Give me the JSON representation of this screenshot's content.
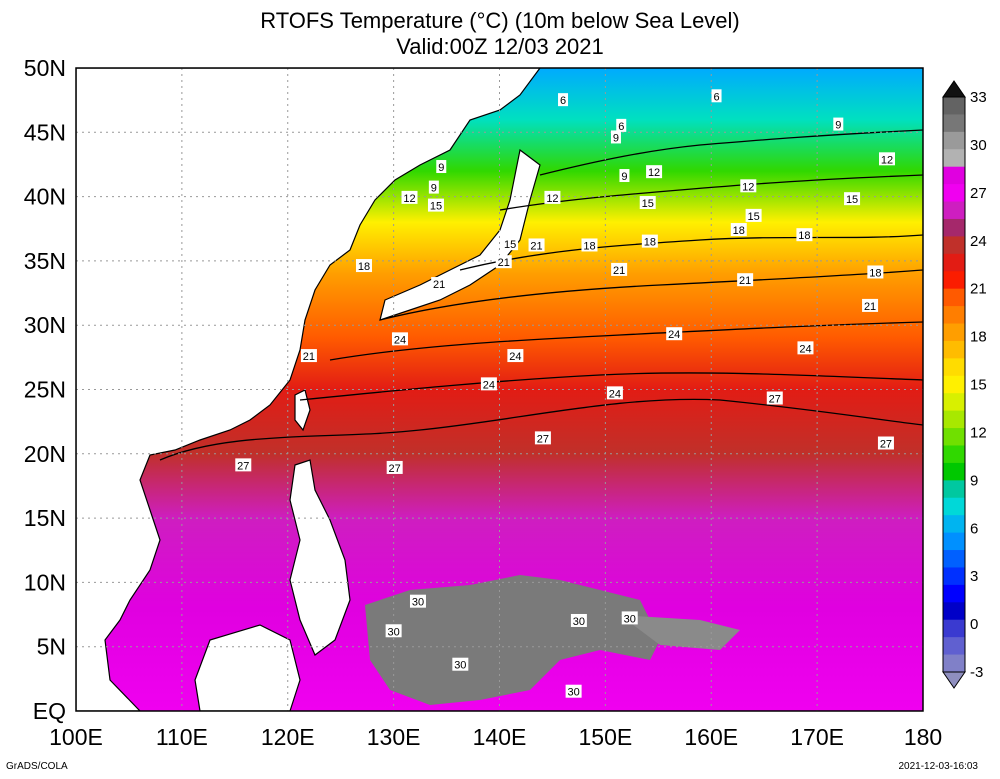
{
  "title": {
    "line1": "RTOFS Temperature (°C) (10m below Sea Level)",
    "line2": "Valid:00Z 12/03 2021"
  },
  "map": {
    "lon_range": [
      100,
      180
    ],
    "lat_range": [
      0,
      50
    ],
    "x_ticks": [
      "100E",
      "110E",
      "120E",
      "130E",
      "140E",
      "150E",
      "160E",
      "170E",
      "180"
    ],
    "y_ticks": [
      "EQ",
      "5N",
      "10N",
      "15N",
      "20N",
      "25N",
      "30N",
      "35N",
      "40N",
      "45N",
      "50N"
    ],
    "grid": "dotted",
    "contour_labels": [
      {
        "text": "6",
        "lon": 146,
        "lat": 47.5
      },
      {
        "text": "6",
        "lon": 160.5,
        "lat": 47.8
      },
      {
        "text": "6",
        "lon": 151.5,
        "lat": 45.5
      },
      {
        "text": "9",
        "lon": 134.5,
        "lat": 42.3
      },
      {
        "text": "9",
        "lon": 133.8,
        "lat": 40.7
      },
      {
        "text": "9",
        "lon": 151,
        "lat": 44.6
      },
      {
        "text": "9",
        "lon": 172,
        "lat": 45.6
      },
      {
        "text": "9",
        "lon": 151.8,
        "lat": 41.6
      },
      {
        "text": "12",
        "lon": 131.5,
        "lat": 39.9
      },
      {
        "text": "12",
        "lon": 145,
        "lat": 39.9
      },
      {
        "text": "12",
        "lon": 154.6,
        "lat": 41.9
      },
      {
        "text": "12",
        "lon": 163.5,
        "lat": 40.8
      },
      {
        "text": "12",
        "lon": 176.6,
        "lat": 42.9
      },
      {
        "text": "15",
        "lon": 134,
        "lat": 39.3
      },
      {
        "text": "15",
        "lon": 154,
        "lat": 39.5
      },
      {
        "text": "15",
        "lon": 164,
        "lat": 38.5
      },
      {
        "text": "15",
        "lon": 173.3,
        "lat": 39.8
      },
      {
        "text": "15",
        "lon": 141,
        "lat": 36.3
      },
      {
        "text": "18",
        "lon": 127.2,
        "lat": 34.6
      },
      {
        "text": "18",
        "lon": 148.5,
        "lat": 36.2
      },
      {
        "text": "18",
        "lon": 154.2,
        "lat": 36.5
      },
      {
        "text": "18",
        "lon": 162.6,
        "lat": 37.4
      },
      {
        "text": "18",
        "lon": 168.8,
        "lat": 37
      },
      {
        "text": "18",
        "lon": 175.5,
        "lat": 34.1
      },
      {
        "text": "21",
        "lon": 143.5,
        "lat": 36.2
      },
      {
        "text": "21",
        "lon": 140.4,
        "lat": 34.9
      },
      {
        "text": "21",
        "lon": 151.3,
        "lat": 34.3
      },
      {
        "text": "21",
        "lon": 163.2,
        "lat": 33.5
      },
      {
        "text": "21",
        "lon": 175,
        "lat": 31.5
      },
      {
        "text": "21",
        "lon": 134.3,
        "lat": 33.2
      },
      {
        "text": "21",
        "lon": 122,
        "lat": 27.6
      },
      {
        "text": "24",
        "lon": 130.6,
        "lat": 28.9
      },
      {
        "text": "24",
        "lon": 141.5,
        "lat": 27.6
      },
      {
        "text": "24",
        "lon": 156.5,
        "lat": 29.3
      },
      {
        "text": "24",
        "lon": 168.9,
        "lat": 28.2
      },
      {
        "text": "24",
        "lon": 139,
        "lat": 25.4
      },
      {
        "text": "24",
        "lon": 150.9,
        "lat": 24.7
      },
      {
        "text": "27",
        "lon": 166,
        "lat": 24.3
      },
      {
        "text": "27",
        "lon": 144.1,
        "lat": 21.2
      },
      {
        "text": "27",
        "lon": 176.5,
        "lat": 20.8
      },
      {
        "text": "27",
        "lon": 130.1,
        "lat": 18.9
      },
      {
        "text": "27",
        "lon": 115.8,
        "lat": 19.1
      },
      {
        "text": "30",
        "lon": 132.3,
        "lat": 8.5
      },
      {
        "text": "30",
        "lon": 130,
        "lat": 6.2
      },
      {
        "text": "30",
        "lon": 147.5,
        "lat": 7
      },
      {
        "text": "30",
        "lon": 152.3,
        "lat": 7.2
      },
      {
        "text": "30",
        "lon": 136.3,
        "lat": 3.6
      },
      {
        "text": "30",
        "lon": 147,
        "lat": 1.5
      }
    ]
  },
  "colorbar": {
    "labels": [
      "33",
      "30",
      "27",
      "24",
      "21",
      "18",
      "15",
      "12",
      "9",
      "6",
      "3",
      "0",
      "-3"
    ],
    "colors": [
      "#636363",
      "#777777",
      "#9a9a9a",
      "#b2b2b2",
      "#e000e0",
      "#f000f0",
      "#ce1ec0",
      "#a5286b",
      "#c0302a",
      "#e21c14",
      "#fb1d00",
      "#ff5a00",
      "#ff7e00",
      "#ff9e00",
      "#ffbc00",
      "#ffdc00",
      "#fff000",
      "#d8f000",
      "#a8e800",
      "#70e000",
      "#30d800",
      "#00c800",
      "#00c8a0",
      "#00d8d8",
      "#00b4f0",
      "#0090ff",
      "#0060ff",
      "#0030ff",
      "#0000ff",
      "#0000c8",
      "#3a3ad0",
      "#6060d0",
      "#8080c8"
    ],
    "top_color": "#111111",
    "bottom_color": "#8f8fbf"
  },
  "footer": {
    "left": "GrADS/COLA",
    "right": "2021-12-03-16:03"
  }
}
